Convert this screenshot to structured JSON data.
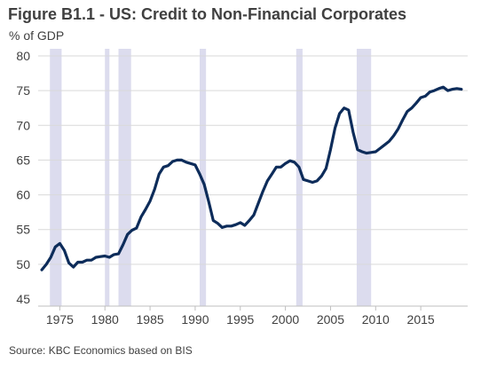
{
  "title": "Figure B1.1 - US: Credit to Non-Financial Corporates",
  "unit_label": "% of GDP",
  "source": "Source: KBC Economics based on BIS",
  "colors": {
    "line": "#0d2c5a",
    "recession": "#dcdcee",
    "grid": "#d9d9d9",
    "text": "#404040"
  },
  "chart_data": {
    "type": "line",
    "title": "Figure B1.1 - US: Credit to Non-Financial Corporates",
    "ylabel": "% of GDP",
    "xlabel": "",
    "xlim": [
      1972.6,
      2020.2
    ],
    "ylim": [
      45,
      80
    ],
    "grid": true,
    "legend": "none",
    "y_ticks": [
      45,
      50,
      55,
      60,
      65,
      70,
      75,
      80
    ],
    "x_ticks": [
      1975,
      1980,
      1985,
      1990,
      1995,
      2000,
      2005,
      2010,
      2015
    ],
    "recession_bands": [
      [
        1973.9,
        1975.2
      ],
      [
        1980.0,
        1980.5
      ],
      [
        1981.5,
        1982.9
      ],
      [
        1990.5,
        1991.2
      ],
      [
        2001.2,
        2001.9
      ],
      [
        2007.9,
        2009.5
      ]
    ],
    "series": [
      {
        "name": "",
        "x": [
          1973.0,
          1973.5,
          1974.0,
          1974.5,
          1975.0,
          1975.5,
          1976.0,
          1976.5,
          1977.0,
          1977.5,
          1978.0,
          1978.5,
          1979.0,
          1979.5,
          1980.0,
          1980.5,
          1981.0,
          1981.5,
          1982.0,
          1982.5,
          1983.0,
          1983.5,
          1984.0,
          1984.5,
          1985.0,
          1985.5,
          1986.0,
          1986.5,
          1987.0,
          1987.5,
          1988.0,
          1988.5,
          1989.0,
          1989.5,
          1990.0,
          1990.5,
          1991.0,
          1991.5,
          1992.0,
          1992.5,
          1993.0,
          1993.5,
          1994.0,
          1994.5,
          1995.0,
          1995.5,
          1996.0,
          1996.5,
          1997.0,
          1997.5,
          1998.0,
          1998.5,
          1999.0,
          1999.5,
          2000.0,
          2000.5,
          2001.0,
          2001.5,
          2002.0,
          2002.5,
          2003.0,
          2003.5,
          2004.0,
          2004.5,
          2005.0,
          2005.5,
          2006.0,
          2006.5,
          2007.0,
          2007.5,
          2008.0,
          2008.5,
          2009.0,
          2009.5,
          2010.0,
          2010.5,
          2011.0,
          2011.5,
          2012.0,
          2012.5,
          2013.0,
          2013.5,
          2014.0,
          2014.5,
          2015.0,
          2015.5,
          2016.0,
          2016.5,
          2017.0,
          2017.5,
          2018.0,
          2018.5,
          2019.0,
          2019.5
        ],
        "values": [
          49.2,
          50.0,
          51.0,
          52.5,
          53.0,
          52.0,
          50.2,
          49.6,
          50.3,
          50.3,
          50.6,
          50.6,
          51.0,
          51.1,
          51.2,
          51.0,
          51.4,
          51.5,
          52.8,
          54.3,
          54.9,
          55.2,
          56.8,
          57.9,
          59.1,
          60.8,
          63.0,
          64.0,
          64.2,
          64.8,
          65.0,
          65.0,
          64.7,
          64.5,
          64.3,
          63.0,
          61.5,
          59.0,
          56.3,
          55.9,
          55.3,
          55.5,
          55.5,
          55.7,
          56.0,
          55.6,
          56.3,
          57.1,
          58.8,
          60.5,
          62.0,
          63.0,
          64.0,
          64.0,
          64.5,
          64.9,
          64.7,
          64.0,
          62.2,
          62.0,
          61.8,
          62.0,
          62.7,
          63.8,
          66.5,
          69.6,
          71.7,
          72.5,
          72.2,
          69.0,
          66.5,
          66.2,
          66.0,
          66.1,
          66.2,
          66.7,
          67.2,
          67.7,
          68.5,
          69.5,
          70.8,
          72.0,
          72.5,
          73.2,
          74.0,
          74.2,
          74.8,
          75.0,
          75.3,
          75.5,
          75.0,
          75.2,
          75.3,
          75.2
        ],
        "color": "#0d2c5a"
      }
    ]
  }
}
